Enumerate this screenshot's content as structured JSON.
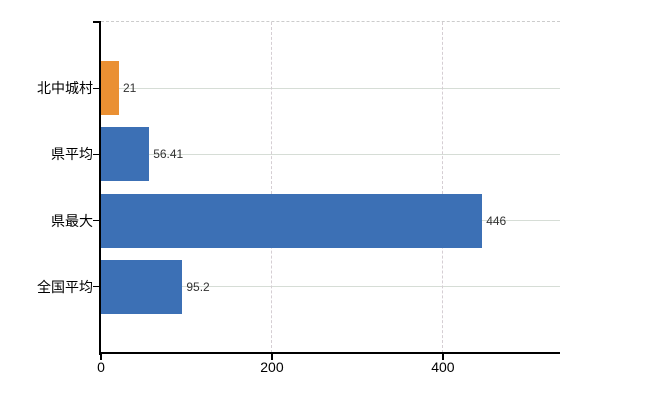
{
  "chart_data": {
    "type": "bar",
    "orientation": "horizontal",
    "title": "",
    "categories": [
      "北中城村",
      "県平均",
      "県最大",
      "全国平均"
    ],
    "values": [
      21,
      56.41,
      446,
      95.2
    ],
    "value_labels": [
      "21",
      "56.41",
      "446",
      "95.2"
    ],
    "bar_colors": [
      "#EA9033",
      "#3C70B5",
      "#3C70B5",
      "#3C70B5"
    ],
    "x_axis": {
      "ticks": [
        0,
        200,
        400
      ],
      "tick_labels": [
        "0",
        "200",
        "400"
      ],
      "range": [
        0,
        537
      ]
    },
    "legend": false,
    "grid": {
      "horizontal": "solid",
      "vertical": "dashed",
      "top_border": "dashed"
    },
    "colors": {
      "background": "#FFFFFF",
      "axis": "#000000",
      "grid_h": "#D6DDD6",
      "grid_v": "#D5CED3",
      "top_border": "#CCCCCC",
      "category_label": "#000000",
      "tick_label": "#000000",
      "value_label": "#333333"
    }
  }
}
